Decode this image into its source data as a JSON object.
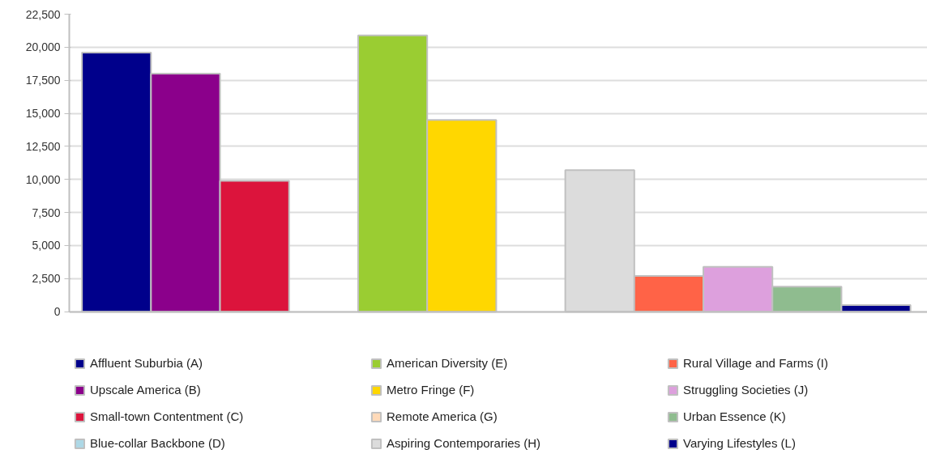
{
  "chart_data": {
    "type": "bar",
    "categories": [
      null
    ],
    "series": [
      {
        "name": "Affluent Suburbia (A)",
        "color": "#00008b",
        "values": [
          19600
        ]
      },
      {
        "name": "Upscale America (B)",
        "color": "#8b008b",
        "values": [
          18000
        ]
      },
      {
        "name": "Small-town Contentment (C)",
        "color": "#dc143c",
        "values": [
          9900
        ]
      },
      {
        "name": "Blue-collar Backbone (D)",
        "color": "#add8e6",
        "values": [
          null
        ]
      },
      {
        "name": "American Diversity (E)",
        "color": "#9acd32",
        "values": [
          20900
        ]
      },
      {
        "name": "Metro Fringe (F)",
        "color": "#ffd700",
        "values": [
          14500
        ]
      },
      {
        "name": "Remote America (G)",
        "color": "#ffdab9",
        "values": [
          null
        ]
      },
      {
        "name": "Aspiring Contemporaries (H)",
        "color": "#dcdcdc",
        "values": [
          10700
        ]
      },
      {
        "name": "Rural Village and Farms (I)",
        "color": "#ff6347",
        "values": [
          2700
        ]
      },
      {
        "name": "Struggling Societies (J)",
        "color": "#dda0dd",
        "values": [
          3400
        ]
      },
      {
        "name": "Urban Essence (K)",
        "color": "#8fbc8f",
        "values": [
          1900
        ]
      },
      {
        "name": "Varying Lifestyles (L)",
        "color": "#00008b",
        "values": [
          500
        ]
      }
    ],
    "ylim": [
      0,
      22500
    ],
    "yticks": [
      {
        "value": 0,
        "label": "0"
      },
      {
        "value": 2500,
        "label": "2,500"
      },
      {
        "value": 5000,
        "label": "5,000"
      },
      {
        "value": 7500,
        "label": "7,500"
      },
      {
        "value": 10000,
        "label": "10,000"
      },
      {
        "value": 12500,
        "label": "12,500"
      },
      {
        "value": 15000,
        "label": "15,000"
      },
      {
        "value": 17500,
        "label": "17,500"
      },
      {
        "value": 20000,
        "label": "20,000"
      },
      {
        "value": 22500,
        "label": "22,500"
      }
    ],
    "grid": "y",
    "legend": "bottom",
    "tick_labels": "y"
  }
}
